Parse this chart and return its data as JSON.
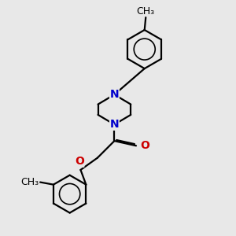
{
  "bg_color": "#e8e8e8",
  "bond_color": "#000000",
  "N_color": "#0000cc",
  "O_color": "#cc0000",
  "line_width": 1.6,
  "font_size_atom": 10,
  "font_size_methyl": 9,
  "fig_size": [
    3.0,
    3.0
  ],
  "dpi": 100,
  "xlim": [
    0.5,
    7.5
  ],
  "ylim": [
    0.2,
    9.8
  ]
}
